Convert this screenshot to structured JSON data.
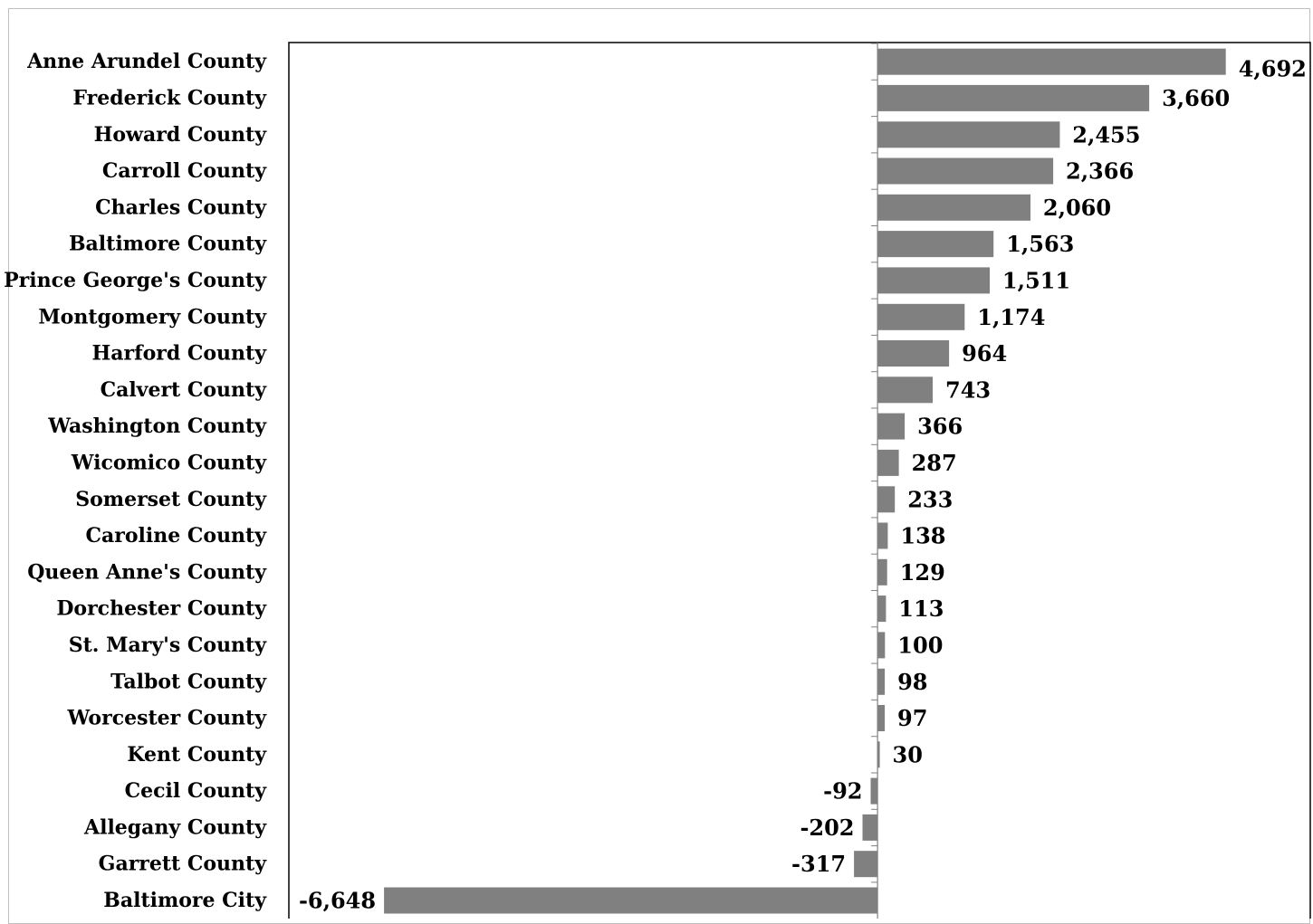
{
  "chart_data": {
    "type": "bar",
    "orientation": "horizontal",
    "categories": [
      "Anne Arundel County",
      "Frederick County",
      "Howard County",
      "Carroll County",
      "Charles County",
      "Baltimore County",
      "Prince George's County",
      "Montgomery County",
      "Harford County",
      "Calvert County",
      "Washington County",
      "Wicomico County",
      "Somerset County",
      "Caroline County",
      "Queen Anne's County",
      "Dorchester County",
      "St. Mary's County",
      "Talbot County",
      "Worcester County",
      "Kent County",
      "Cecil County",
      "Allegany County",
      "Garrett County",
      "Baltimore City"
    ],
    "values": [
      4692,
      3660,
      2455,
      2366,
      2060,
      1563,
      1511,
      1174,
      964,
      743,
      366,
      287,
      233,
      138,
      129,
      113,
      100,
      98,
      97,
      30,
      -92,
      -202,
      -317,
      -6648
    ],
    "data_labels": [
      "4,692",
      "3,660",
      "2,455",
      "2,366",
      "2,060",
      "1,563",
      "1,511",
      "1,174",
      "964",
      "743",
      "366",
      "287",
      "233",
      "138",
      "129",
      "113",
      "100",
      "98",
      "97",
      "30",
      "-92",
      "-202",
      "-317",
      "-6,648"
    ],
    "xlim": [
      -7930,
      5830
    ],
    "bar_color": "#808080",
    "axis_color": "#000000",
    "grid": false,
    "legend": "none",
    "title": "",
    "xlabel": "",
    "ylabel": ""
  }
}
